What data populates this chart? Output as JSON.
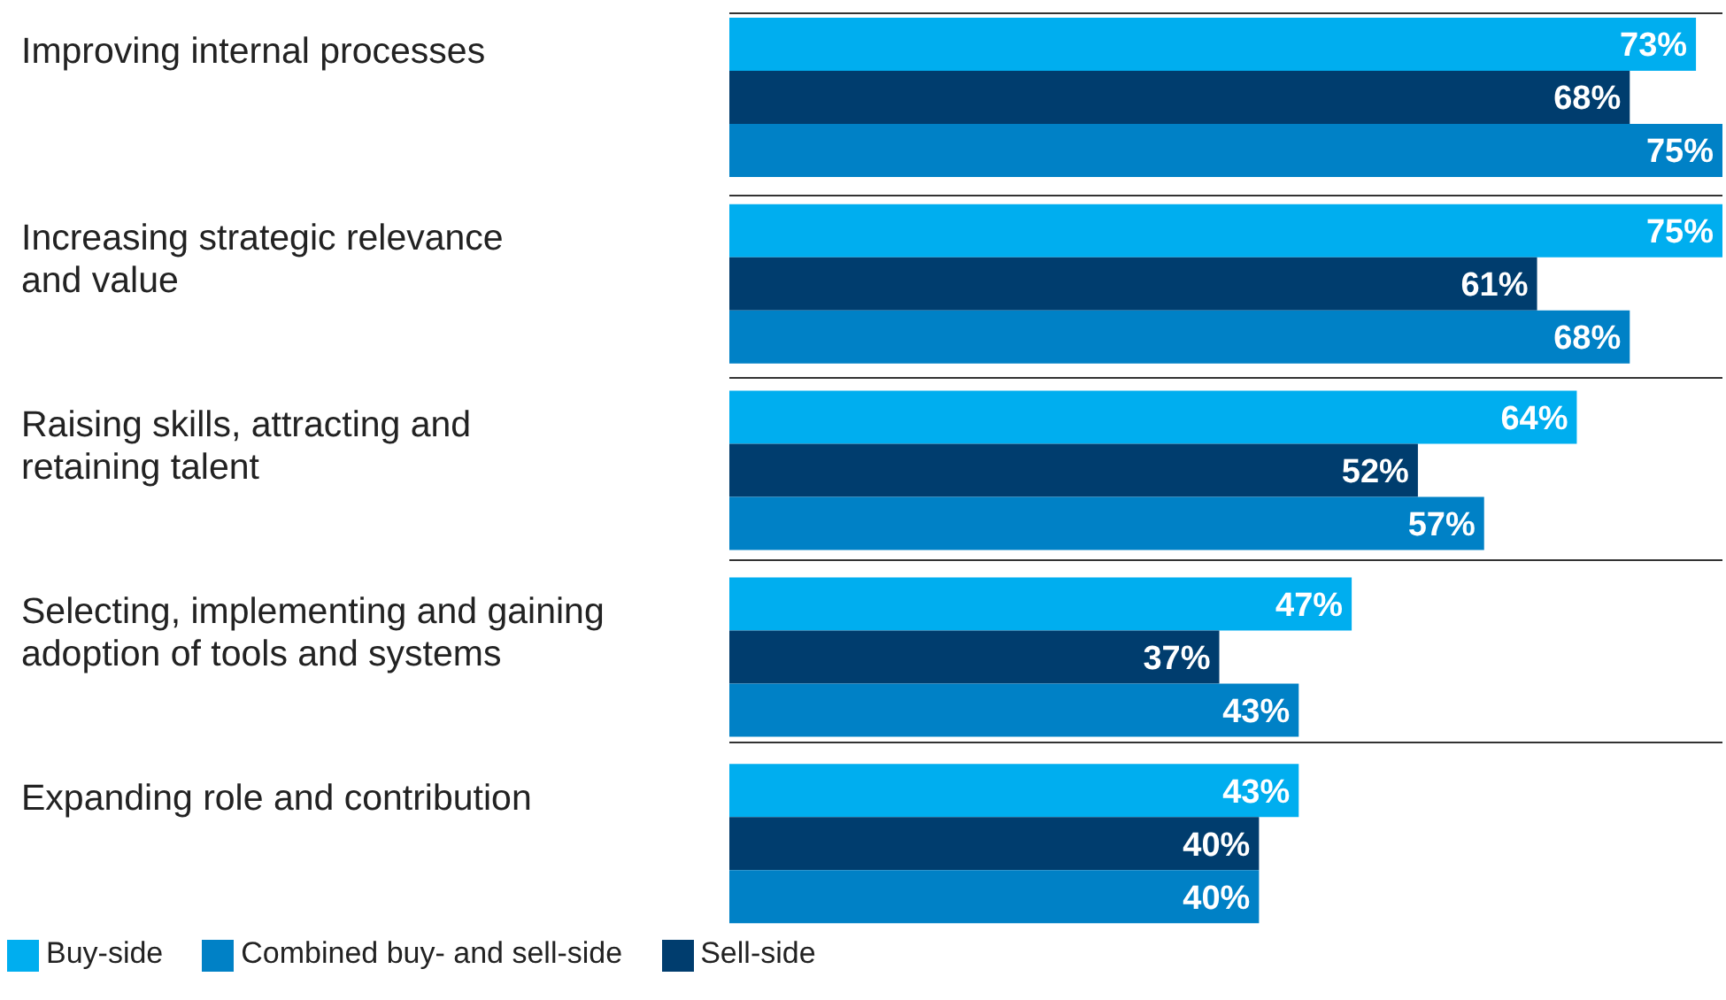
{
  "chart_data": {
    "type": "bar",
    "orientation": "horizontal",
    "categories": [
      "Improving internal processes",
      "Increasing strategic relevance\nand value",
      "Raising skills, attracting and\nretaining talent",
      "Selecting, implementing and gaining\nadoption of tools and systems",
      "Expanding role and contribution"
    ],
    "series": [
      {
        "name": "Buy-side",
        "color": "#00aeef",
        "values": [
          73,
          75,
          64,
          47,
          43
        ],
        "value_labels": [
          "73%",
          "75%",
          "64%",
          "47%",
          "43%"
        ]
      },
      {
        "name": "Sell-side",
        "color": "#003d6e",
        "values": [
          68,
          61,
          52,
          37,
          40
        ],
        "value_labels": [
          "68%",
          "61%",
          "52%",
          "37%",
          "40%"
        ]
      },
      {
        "name": "Combined buy- and sell-side",
        "color": "#0081c6",
        "values": [
          75,
          68,
          57,
          43,
          40
        ],
        "value_labels": [
          "75%",
          "68%",
          "57%",
          "43%",
          "40%"
        ]
      }
    ],
    "grid": "y",
    "legend": "bottom left"
  }
}
